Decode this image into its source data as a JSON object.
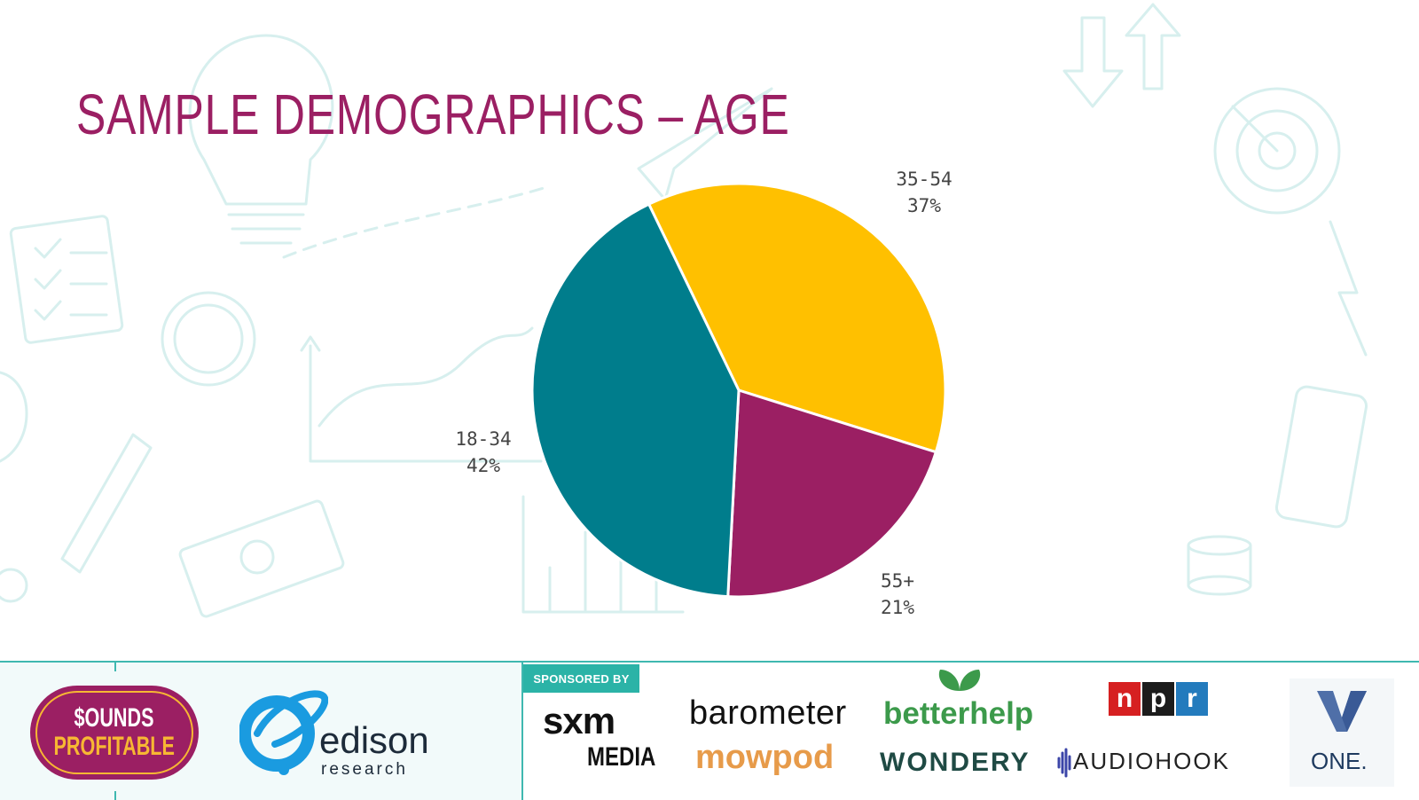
{
  "slide": {
    "title": "SAMPLE DEMOGRAPHICS – AGE"
  },
  "chart_data": {
    "type": "pie",
    "title": "SAMPLE DEMOGRAPHICS – AGE",
    "categories": [
      "35-54",
      "55+",
      "18-34"
    ],
    "values": [
      37,
      21,
      42
    ],
    "value_labels": [
      "37%",
      "21%",
      "42%"
    ],
    "colors": [
      "#ffc000",
      "#9b1f63",
      "#007d8c"
    ],
    "start": "top, clockwise",
    "legend": "none"
  },
  "footer": {
    "sounds_profitable": [
      "$OUNDS",
      "PROFITABLE"
    ],
    "edison": {
      "word": "edison",
      "sub": "research"
    },
    "sponsored_label": "SPONSORED BY",
    "sponsors": {
      "sxm_1": "sxm",
      "sxm_2": "MEDIA",
      "barometer": "barometer",
      "mowpod": "mowpod",
      "betterhelp": "betterhelp",
      "wondery": "WONDERY",
      "npr": [
        "n",
        "p",
        "r"
      ],
      "npr_colors": [
        "#d62021",
        "#1c1c1c",
        "#237bbd"
      ],
      "audiohook": "AUDIOHOOK",
      "one": "ONE."
    }
  }
}
